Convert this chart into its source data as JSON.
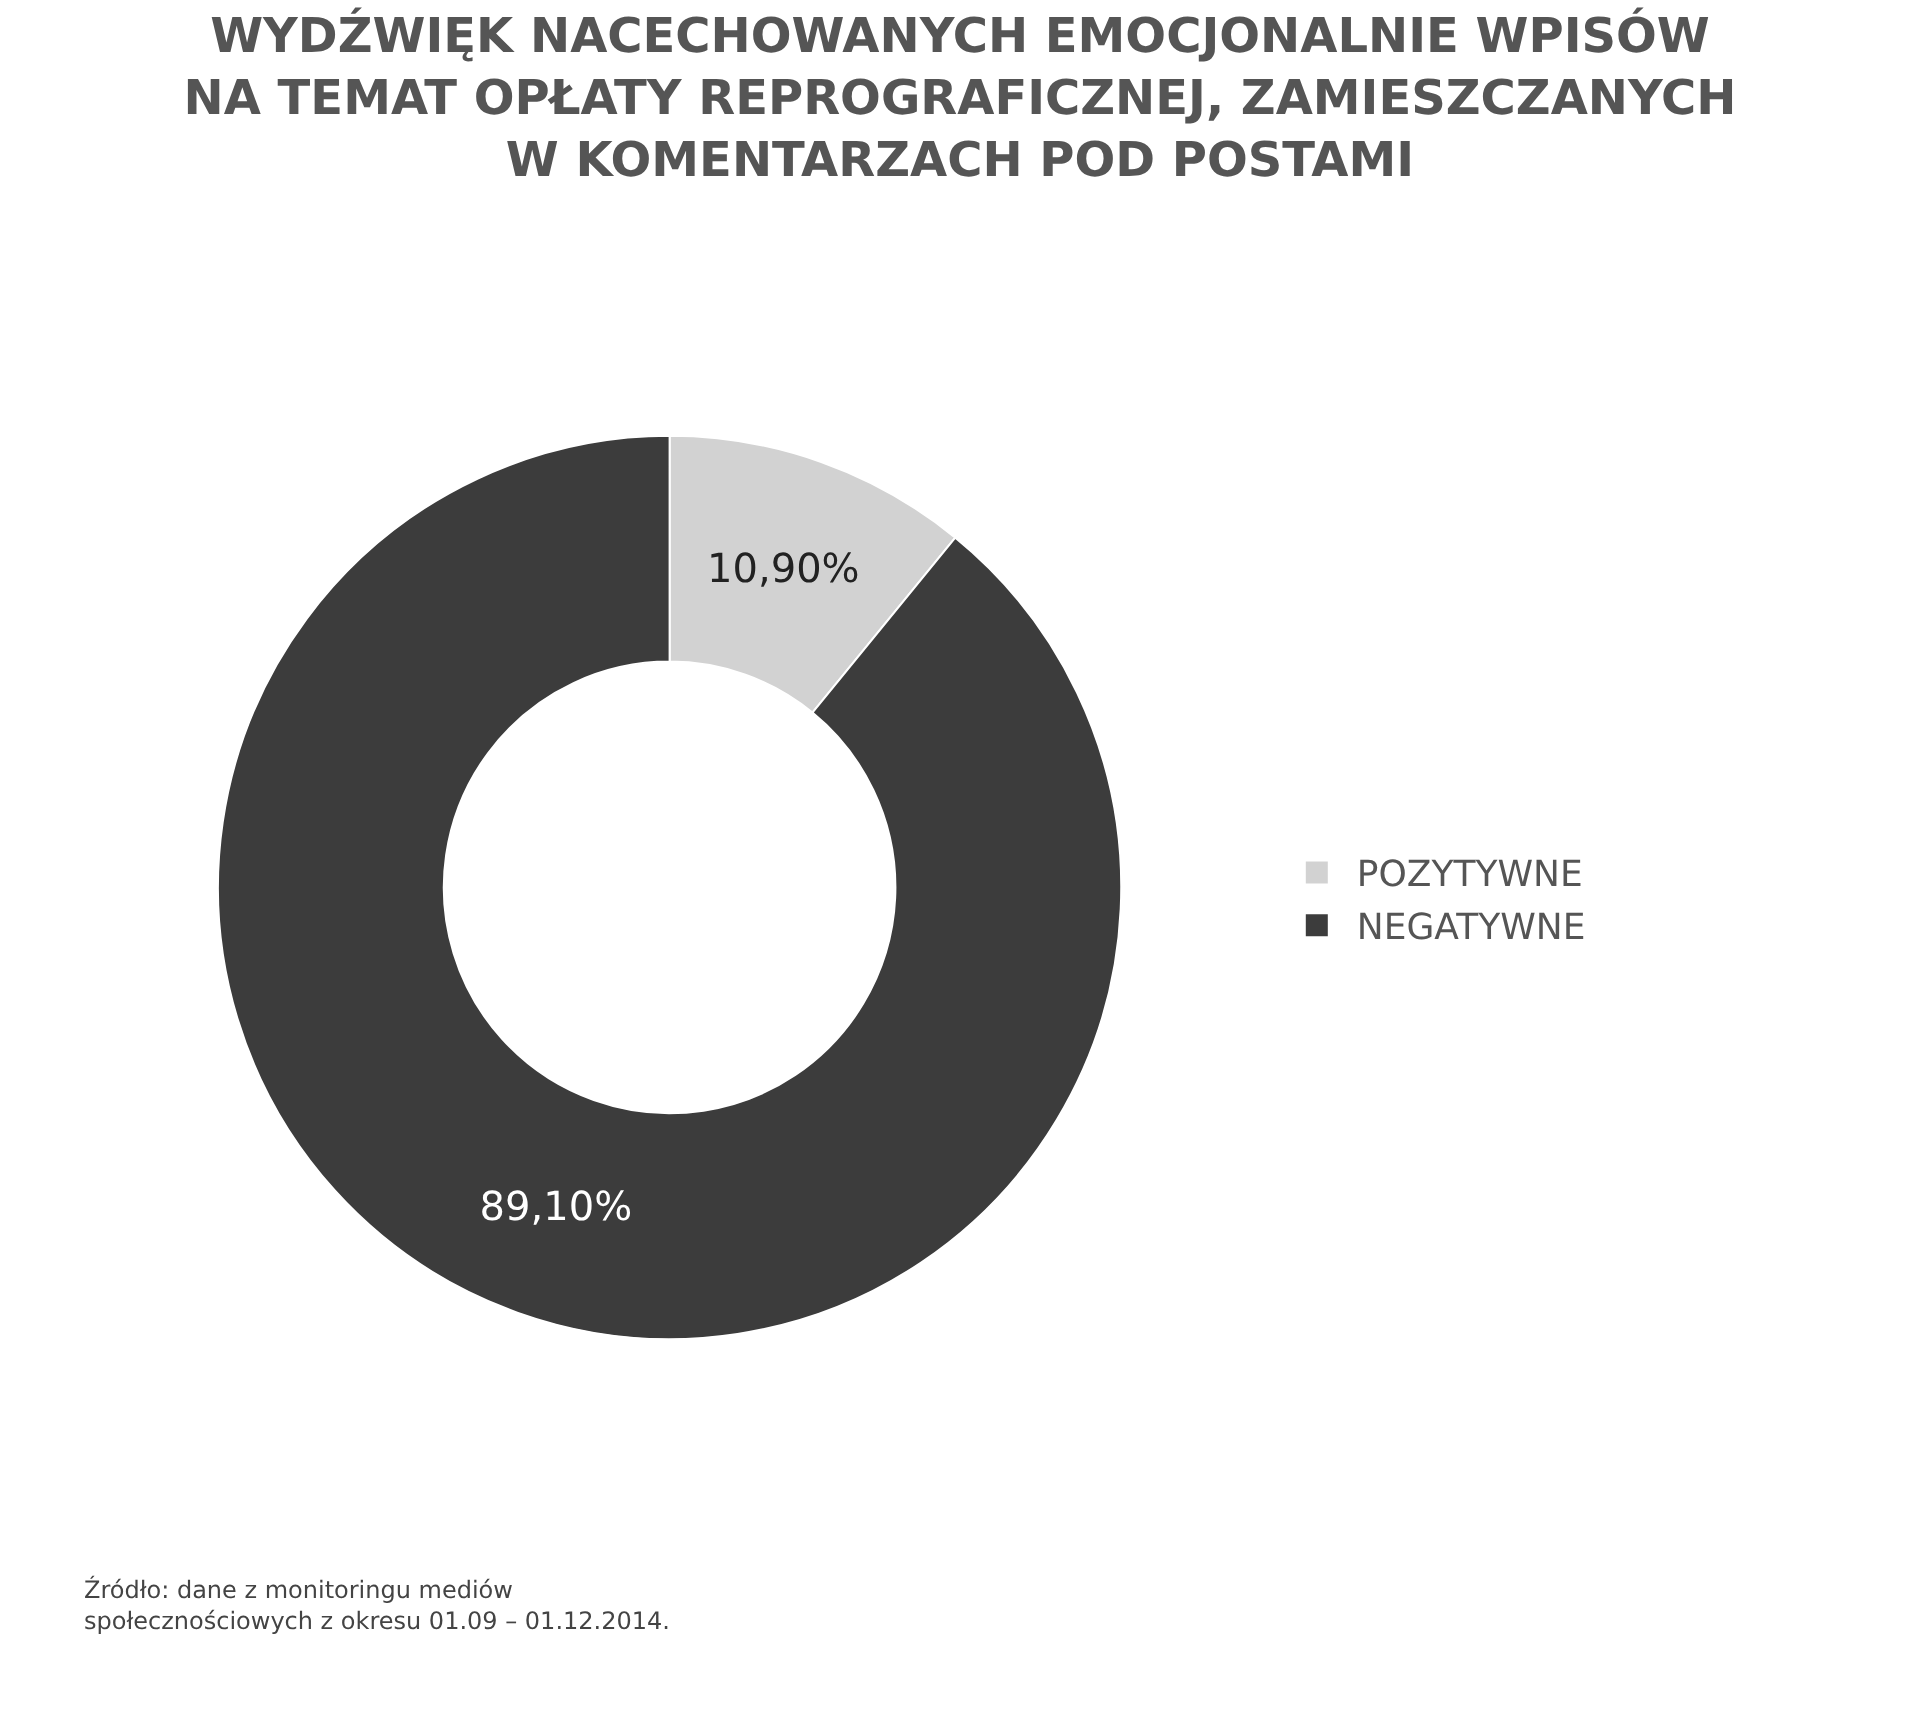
{
  "chart_data": {
    "type": "donut",
    "title": "WYDŹWIĘK NACECHOWANYCH EMOCJONALNIE WPISÓW\nNA TEMAT OPŁATY REPROGRAFICZNEJ, ZAMIESZCZANYCH\nW KOMENTARZACH POD POSTAMI",
    "categories": [
      "POZYTYWNE",
      "NEGATYWNE"
    ],
    "values": [
      10.9,
      89.1
    ],
    "colors": [
      "#d2d2d2",
      "#3c3c3c"
    ],
    "value_labels": [
      "10,90%",
      "89,10%"
    ],
    "legend": "right",
    "annotations": [
      "Źródło: dane z monitoringu mediów\nspołecznościowych z okresu 01.09 – 01.12.2014."
    ]
  }
}
